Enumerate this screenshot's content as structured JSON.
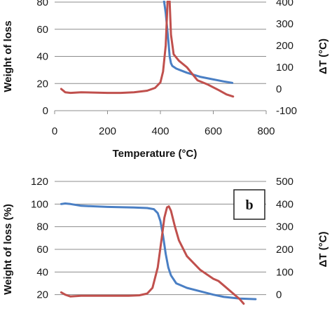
{
  "chart_data": [
    {
      "type": "line",
      "xlabel": "Temperature (°C)",
      "ylabel": "Weight of loss",
      "y2label": "ΔT (°C)",
      "xlim": [
        0,
        800
      ],
      "ylim": [
        0,
        80
      ],
      "y2lim": [
        -100,
        400
      ],
      "x_ticks": [
        "0",
        "200",
        "400",
        "600",
        "800"
      ],
      "y_ticks": [
        "0",
        "20",
        "40",
        "60",
        "80"
      ],
      "y2_ticks": [
        "-100",
        "0",
        "100",
        "200",
        "300",
        "400"
      ],
      "grid": true,
      "series": [
        {
          "color": "#4a7fc4",
          "axis": "left",
          "values": [
            [
              410,
              86
            ],
            [
              420,
              72
            ],
            [
              430,
              52
            ],
            [
              435,
              40
            ],
            [
              440,
              35
            ],
            [
              445,
              33
            ],
            [
              460,
              31
            ],
            [
              500,
              28
            ],
            [
              550,
              25
            ],
            [
              600,
              23
            ],
            [
              640,
              21.5
            ],
            [
              672,
              20.5
            ]
          ]
        },
        {
          "color": "#c0504d",
          "axis": "right",
          "values": [
            [
              25,
              0
            ],
            [
              40,
              -15
            ],
            [
              60,
              -18
            ],
            [
              100,
              -15
            ],
            [
              200,
              -18
            ],
            [
              250,
              -18
            ],
            [
              300,
              -15
            ],
            [
              350,
              -8
            ],
            [
              380,
              5
            ],
            [
              400,
              30
            ],
            [
              410,
              80
            ],
            [
              420,
              200
            ],
            [
              427,
              400
            ],
            [
              433,
              460
            ],
            [
              440,
              250
            ],
            [
              450,
              160
            ],
            [
              470,
              130
            ],
            [
              500,
              100
            ],
            [
              520,
              70
            ],
            [
              540,
              40
            ],
            [
              580,
              20
            ],
            [
              620,
              -5
            ],
            [
              650,
              -25
            ],
            [
              675,
              -35
            ]
          ]
        }
      ]
    },
    {
      "type": "line",
      "panel_label": "b",
      "ylabel": "Weight of loss (%)",
      "y2label": "ΔT (°C)",
      "xlim": [
        0,
        800
      ],
      "ylim": [
        0,
        120
      ],
      "y2lim": [
        -100,
        500
      ],
      "y_ticks": [
        "20",
        "40",
        "60",
        "80",
        "100",
        "120"
      ],
      "y2_ticks": [
        "0",
        "100",
        "200",
        "300",
        "400",
        "500"
      ],
      "grid": true,
      "series": [
        {
          "color": "#4a7fc4",
          "axis": "left",
          "values": [
            [
              25,
              100
            ],
            [
              40,
              100.5
            ],
            [
              60,
              100
            ],
            [
              100,
              98.5
            ],
            [
              200,
              97.5
            ],
            [
              300,
              97
            ],
            [
              350,
              96.5
            ],
            [
              375,
              95.5
            ],
            [
              390,
              92
            ],
            [
              400,
              85
            ],
            [
              410,
              72
            ],
            [
              420,
              56
            ],
            [
              430,
              44
            ],
            [
              440,
              37
            ],
            [
              460,
              30
            ],
            [
              500,
              26
            ],
            [
              550,
              23
            ],
            [
              600,
              20
            ],
            [
              640,
              18
            ],
            [
              700,
              16.5
            ],
            [
              760,
              16
            ]
          ]
        },
        {
          "color": "#c0504d",
          "axis": "right",
          "values": [
            [
              25,
              10
            ],
            [
              40,
              0
            ],
            [
              60,
              -8
            ],
            [
              100,
              -5
            ],
            [
              200,
              -5
            ],
            [
              280,
              -5
            ],
            [
              320,
              -3
            ],
            [
              350,
              5
            ],
            [
              370,
              30
            ],
            [
              390,
              120
            ],
            [
              405,
              250
            ],
            [
              415,
              340
            ],
            [
              425,
              385
            ],
            [
              432,
              390
            ],
            [
              440,
              370
            ],
            [
              455,
              300
            ],
            [
              470,
              240
            ],
            [
              500,
              170
            ],
            [
              550,
              110
            ],
            [
              600,
              70
            ],
            [
              620,
              60
            ],
            [
              640,
              40
            ],
            [
              670,
              10
            ],
            [
              690,
              -10
            ],
            [
              700,
              -20
            ],
            [
              715,
              -40
            ]
          ]
        }
      ]
    }
  ]
}
